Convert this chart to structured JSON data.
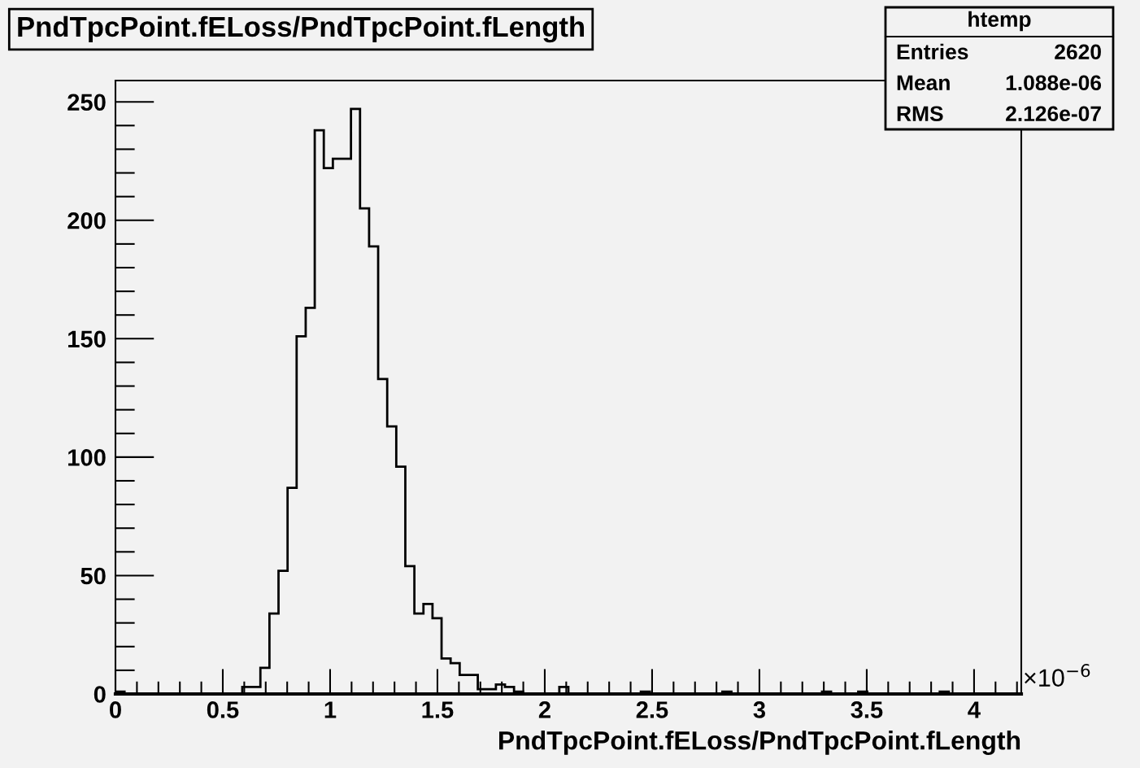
{
  "chart_data": {
    "type": "histogram",
    "title": "PndTpcPoint.fELoss/PndTpcPoint.fLength",
    "xlabel": "PndTpcPoint.fELoss/PndTpcPoint.fLength",
    "annotations": [
      "×10$^{−6}$",
      "htemp",
      "Entries",
      "2620",
      "Mean",
      "1.088e-06",
      "RMS",
      "2.126e-07"
    ],
    "bins": [
      0,
      0.0422,
      0.0844,
      0.1266,
      0.1688,
      0.211,
      0.2532,
      0.2954,
      0.3376,
      0.3798,
      0.422,
      0.4642,
      0.5064,
      0.5486,
      0.5908,
      0.633,
      0.6752,
      0.7174,
      0.7596,
      0.8018,
      0.844,
      0.8862,
      0.9284,
      0.9706,
      1.0128,
      1.055,
      1.0972,
      1.1394,
      1.1816,
      1.2238,
      1.266,
      1.3082,
      1.3504,
      1.3926,
      1.4348,
      1.477,
      1.5192,
      1.5614,
      1.6036,
      1.6458,
      1.688,
      1.7302,
      1.7724,
      1.8146,
      1.8568,
      1.899,
      1.9412,
      1.9834,
      2.0256,
      2.0678,
      2.11,
      2.1522,
      2.1944,
      2.2366,
      2.2788,
      2.321,
      2.3632,
      2.4054,
      2.4476,
      2.4898,
      2.532,
      2.5742,
      2.6164,
      2.6586,
      2.7008,
      2.743,
      2.7852,
      2.8274,
      2.8696,
      2.9118,
      2.954,
      2.9962,
      3.0384,
      3.0806,
      3.1228,
      3.165,
      3.2072,
      3.2494,
      3.2916,
      3.3338,
      3.376,
      3.4182,
      3.4604,
      3.5026,
      3.5448,
      3.587,
      3.6292,
      3.6714,
      3.7136,
      3.7558,
      3.798,
      3.8402,
      3.8824,
      3.9246,
      3.9668,
      4.009,
      4.0512,
      4.0934,
      4.1356,
      4.1778,
      4.22
    ],
    "values": [
      1,
      0,
      0,
      0,
      0,
      0,
      0,
      0,
      0,
      0,
      0,
      0,
      0,
      0,
      3,
      3,
      11,
      34,
      52,
      87,
      151,
      163,
      238,
      222,
      226,
      226,
      247,
      205,
      189,
      133,
      113,
      96,
      54,
      34,
      38,
      32,
      15,
      13,
      8,
      8,
      2,
      2,
      4,
      3,
      1,
      0,
      0,
      0,
      0,
      3,
      0,
      0,
      0,
      0,
      0,
      0,
      0,
      0,
      1,
      0,
      0,
      0,
      0,
      0,
      0,
      0,
      0,
      1,
      0,
      0,
      0,
      0,
      0,
      0,
      0,
      0,
      0,
      0,
      1,
      0,
      0,
      0,
      1,
      0,
      0,
      0,
      0,
      0,
      0,
      0,
      0,
      1,
      0,
      0,
      0,
      0,
      0,
      0,
      0,
      0
    ],
    "color": "#000000",
    "xlim": [
      0,
      4.22
    ],
    "xticks": [
      0,
      0.5,
      1,
      1.5,
      2,
      2.5,
      3,
      3.5,
      4
    ],
    "ylim": [
      0,
      259
    ],
    "yticks": [
      0,
      50,
      100,
      150,
      200,
      250
    ],
    "grid": false,
    "legend": false
  }
}
